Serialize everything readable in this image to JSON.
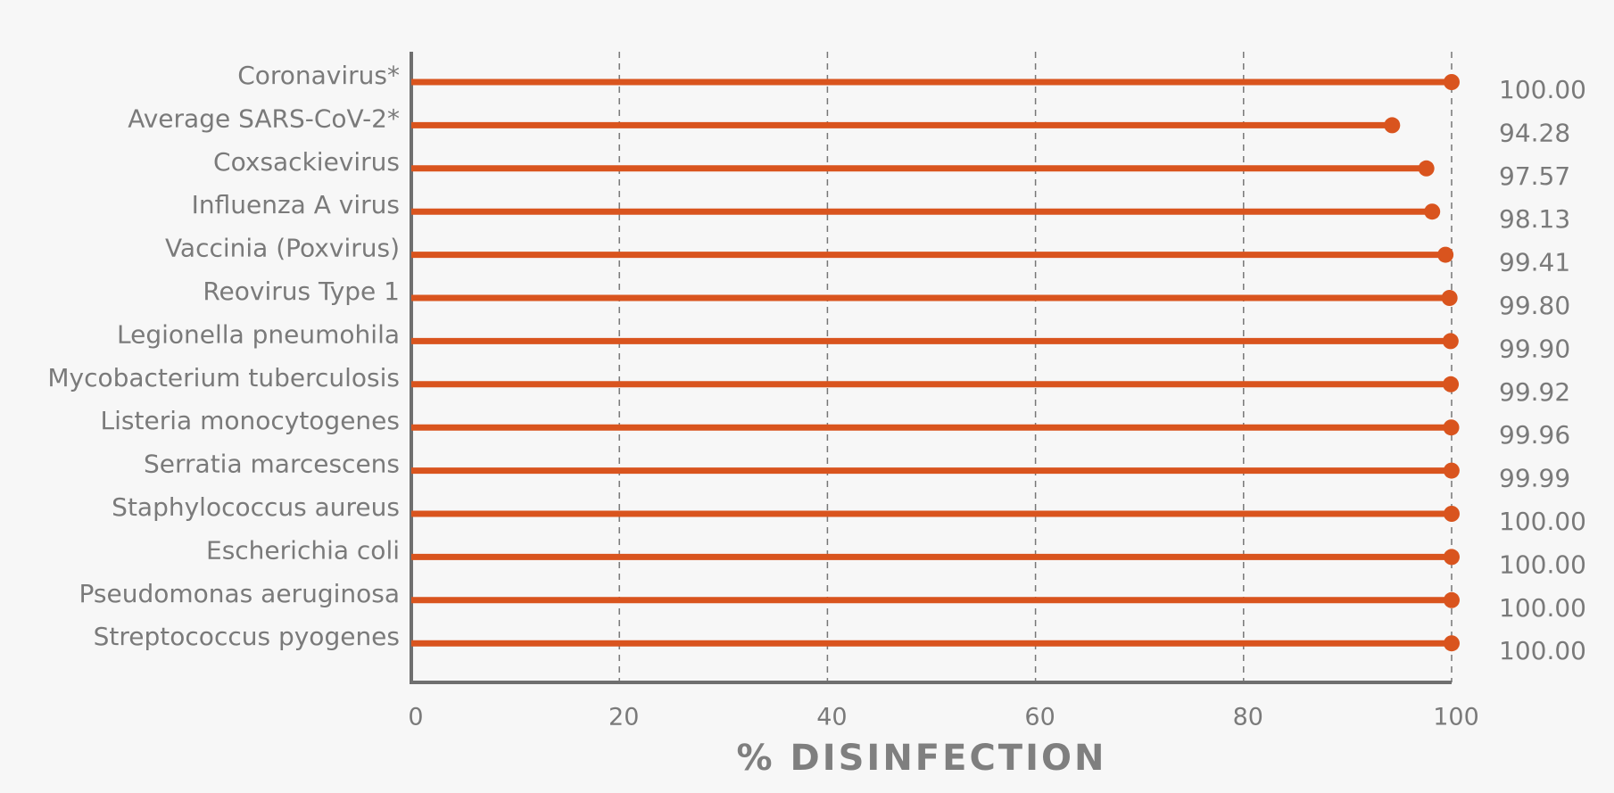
{
  "chart_data": {
    "type": "lollipop",
    "orientation": "horizontal",
    "x_label": "% DISINFECTION",
    "categories": [
      "Coronavirus*",
      "Average SARS-CoV-2*",
      "Coxsackievirus",
      "Influenza A virus",
      "Vaccinia (Poxvirus)",
      "Reovirus Type 1",
      "Legionella pneumohila",
      "Mycobacterium tuberculosis",
      "Listeria monocytogenes",
      "Serratia marcescens",
      "Staphylococcus aureus",
      "Escherichia coli",
      "Pseudomonas aeruginosa",
      "Streptococcus pyogenes"
    ],
    "values": [
      100,
      94.28,
      97.57,
      98.13,
      99.41,
      99.8,
      99.9,
      99.92,
      99.96,
      99.99,
      100,
      100,
      100,
      100
    ],
    "value_labels": [
      "100.00",
      "94.28",
      "97.57",
      "98.13",
      "99.41",
      "99.80",
      "99.90",
      "99.92",
      "99.96",
      "99.99",
      "100.00",
      "100.00",
      "100.00",
      "100.00"
    ],
    "color": "#d9541e",
    "xlim": [
      0,
      100
    ],
    "xticks": [
      0,
      20,
      40,
      60,
      80,
      100
    ],
    "grid": true
  }
}
